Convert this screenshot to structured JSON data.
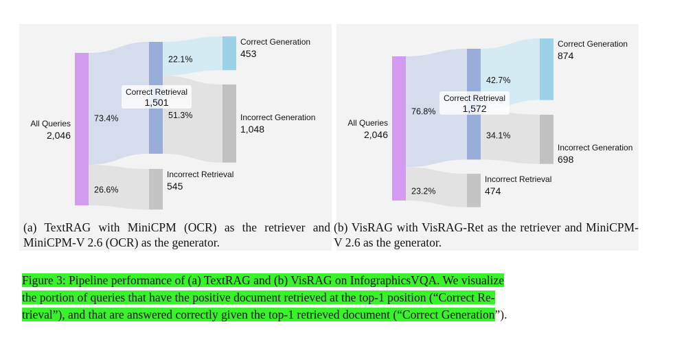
{
  "chart_data": [
    {
      "type": "sankey",
      "subtitle": "(a) TextRAG with MiniCPM (OCR) as the retriever and MiniCPM-V 2.6 (OCR) as the generator.",
      "nodes": {
        "all": {
          "label": "All Queries",
          "value": "2,046"
        },
        "correct_retrieval": {
          "label": "Correct Retrieval",
          "value": "1,501"
        },
        "incorrect_retrieval": {
          "label": "Incorrect Retrieval",
          "value": "545"
        },
        "correct_generation": {
          "label": "Correct Generation",
          "value": "453"
        },
        "incorrect_generation": {
          "label": "Incorrect Generation",
          "value": "1,048"
        }
      },
      "flows": [
        {
          "from": "All Queries",
          "to": "Correct Retrieval",
          "value": 1501,
          "label": "73.4%"
        },
        {
          "from": "All Queries",
          "to": "Incorrect Retrieval",
          "value": 545,
          "label": "26.6%"
        },
        {
          "from": "Correct Retrieval",
          "to": "Correct Generation",
          "value": 453,
          "label": "22.1%"
        },
        {
          "from": "Correct Retrieval",
          "to": "Incorrect Generation",
          "value": 1048,
          "label": "51.3%"
        }
      ]
    },
    {
      "type": "sankey",
      "subtitle": "(b) VisRAG with VisRAG-Ret as the retriever and MiniCPM-V 2.6 as the generator.",
      "nodes": {
        "all": {
          "label": "All Queries",
          "value": "2,046"
        },
        "correct_retrieval": {
          "label": "Correct Retrieval",
          "value": "1,572"
        },
        "incorrect_retrieval": {
          "label": "Incorrect Retrieval",
          "value": "474"
        },
        "correct_generation": {
          "label": "Correct Generation",
          "value": "874"
        },
        "incorrect_generation": {
          "label": "Incorrect Generation",
          "value": "698"
        }
      },
      "flows": [
        {
          "from": "All Queries",
          "to": "Correct Retrieval",
          "value": 1572,
          "label": "76.8%"
        },
        {
          "from": "All Queries",
          "to": "Incorrect Retrieval",
          "value": 474,
          "label": "23.2%"
        },
        {
          "from": "Correct Retrieval",
          "to": "Correct Generation",
          "value": 874,
          "label": "42.7%"
        },
        {
          "from": "Correct Retrieval",
          "to": "Incorrect Generation",
          "value": 698,
          "label": "34.1%"
        }
      ]
    }
  ],
  "figure_caption": [
    "Figure 3: Pipeline performance of (a) TextRAG and (b) VisRAG on InfographicsVQA. We visualize",
    "the portion of queries that have the positive document retrieved at the top-1 position (“Correct Re-",
    "trieval”), and that are answered correctly given the top-1 retrieved document (“Correct Generation",
    "”)."
  ],
  "colors": {
    "all_node": "#d29bf0",
    "correct_retrieval_node": "#98add9",
    "incorrect_retrieval_node": "#c4c4c4",
    "correct_generation_node": "#9cd1e6",
    "incorrect_generation_node": "#c1c1c1",
    "flow_correct_retrieval": "#d5dcec",
    "flow_incorrect": "#e2e2e2",
    "flow_correct_generation": "#d4ebf3"
  }
}
